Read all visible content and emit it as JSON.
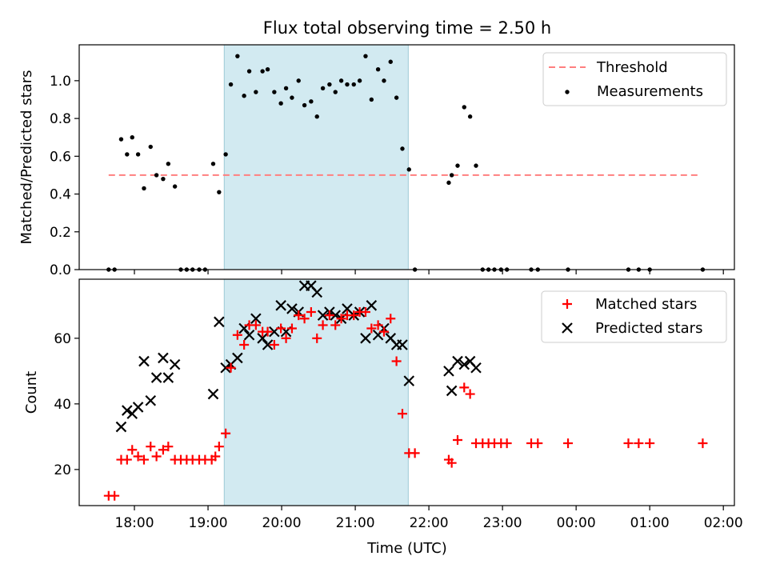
{
  "title": "Flux total observing time = 2.50 h",
  "colors": {
    "threshold": "#ff7f7f",
    "measurement": "#000000",
    "matched": "#ff0000",
    "predicted": "#000000",
    "shade": "#add8e6"
  },
  "chart_data": [
    {
      "type": "scatter",
      "title": "Flux total observing time = 2.50 h",
      "ylabel": "Matched/Predicted stars",
      "xlabel": "",
      "xlim": [
        17.25,
        26.15
      ],
      "ylim": [
        0,
        1.19
      ],
      "yticks": [
        0.0,
        0.2,
        0.4,
        0.6,
        0.8,
        1.0
      ],
      "ytick_labels": [
        "0.0",
        "0.2",
        "0.4",
        "0.6",
        "0.8",
        "1.0"
      ],
      "shaded_span": [
        19.22,
        21.72
      ],
      "legend": [
        "Threshold",
        "Measurements"
      ],
      "legend_position": "upper right",
      "threshold": {
        "name": "Threshold",
        "y": 0.5,
        "x_range": [
          17.65,
          25.7
        ],
        "style": "dashed"
      },
      "series": [
        {
          "name": "Measurements",
          "marker": "dot",
          "points": [
            [
              17.65,
              0.0
            ],
            [
              17.73,
              0.0
            ],
            [
              17.82,
              0.69
            ],
            [
              17.9,
              0.61
            ],
            [
              17.97,
              0.7
            ],
            [
              18.05,
              0.61
            ],
            [
              18.13,
              0.43
            ],
            [
              18.22,
              0.65
            ],
            [
              18.3,
              0.5
            ],
            [
              18.39,
              0.48
            ],
            [
              18.46,
              0.56
            ],
            [
              18.55,
              0.44
            ],
            [
              18.63,
              0.0
            ],
            [
              18.71,
              0.0
            ],
            [
              18.79,
              0.0
            ],
            [
              18.88,
              0.0
            ],
            [
              18.96,
              0.0
            ],
            [
              19.07,
              0.56
            ],
            [
              19.15,
              0.41
            ],
            [
              19.24,
              0.61
            ],
            [
              19.31,
              0.98
            ],
            [
              19.4,
              1.13
            ],
            [
              19.49,
              0.92
            ],
            [
              19.56,
              1.05
            ],
            [
              19.65,
              0.94
            ],
            [
              19.74,
              1.05
            ],
            [
              19.81,
              1.06
            ],
            [
              19.9,
              0.94
            ],
            [
              19.99,
              0.88
            ],
            [
              20.06,
              0.96
            ],
            [
              20.14,
              0.91
            ],
            [
              20.23,
              1.0
            ],
            [
              20.31,
              0.87
            ],
            [
              20.4,
              0.89
            ],
            [
              20.48,
              0.81
            ],
            [
              20.56,
              0.96
            ],
            [
              20.65,
              0.98
            ],
            [
              20.73,
              0.94
            ],
            [
              20.81,
              1.0
            ],
            [
              20.89,
              0.98
            ],
            [
              20.98,
              0.98
            ],
            [
              21.06,
              1.0
            ],
            [
              21.14,
              1.13
            ],
            [
              21.22,
              0.9
            ],
            [
              21.31,
              1.06
            ],
            [
              21.39,
              1.0
            ],
            [
              21.48,
              1.1
            ],
            [
              21.56,
              0.91
            ],
            [
              21.64,
              0.64
            ],
            [
              21.73,
              0.53
            ],
            [
              21.81,
              0.0
            ],
            [
              22.27,
              0.46
            ],
            [
              22.31,
              0.5
            ],
            [
              22.39,
              0.55
            ],
            [
              22.48,
              0.86
            ],
            [
              22.56,
              0.81
            ],
            [
              22.64,
              0.55
            ],
            [
              22.73,
              0.0
            ],
            [
              22.81,
              0.0
            ],
            [
              22.89,
              0.0
            ],
            [
              22.98,
              0.0
            ],
            [
              23.06,
              0.0
            ],
            [
              23.39,
              0.0
            ],
            [
              23.48,
              0.0
            ],
            [
              23.89,
              0.0
            ],
            [
              24.71,
              0.0
            ],
            [
              24.85,
              0.0
            ],
            [
              25.0,
              0.0
            ],
            [
              25.72,
              0.0
            ]
          ]
        }
      ]
    },
    {
      "type": "scatter",
      "title": "",
      "ylabel": "Count",
      "xlabel": "Time (UTC)",
      "xlim": [
        17.25,
        26.15
      ],
      "ylim": [
        9,
        78
      ],
      "yticks": [
        20,
        40,
        60
      ],
      "ytick_labels": [
        "20",
        "40",
        "60"
      ],
      "xticks": [
        18,
        19,
        20,
        21,
        22,
        23,
        24,
        25,
        26
      ],
      "xtick_labels": [
        "18:00",
        "19:00",
        "20:00",
        "21:00",
        "22:00",
        "23:00",
        "00:00",
        "01:00",
        "02:00"
      ],
      "shaded_span": [
        19.22,
        21.72
      ],
      "legend": [
        "Matched stars",
        "Predicted stars"
      ],
      "legend_position": "upper right",
      "series": [
        {
          "name": "Matched stars",
          "marker": "plus",
          "points": [
            [
              17.65,
              12
            ],
            [
              17.73,
              12
            ],
            [
              17.82,
              23
            ],
            [
              17.9,
              23
            ],
            [
              17.97,
              26
            ],
            [
              18.05,
              24
            ],
            [
              18.13,
              23
            ],
            [
              18.22,
              27
            ],
            [
              18.3,
              24
            ],
            [
              18.39,
              26
            ],
            [
              18.46,
              27
            ],
            [
              18.55,
              23
            ],
            [
              18.63,
              23
            ],
            [
              18.71,
              23
            ],
            [
              18.79,
              23
            ],
            [
              18.88,
              23
            ],
            [
              18.96,
              23
            ],
            [
              19.05,
              23
            ],
            [
              19.1,
              24
            ],
            [
              19.15,
              27
            ],
            [
              19.24,
              31
            ],
            [
              19.31,
              51
            ],
            [
              19.4,
              61
            ],
            [
              19.49,
              58
            ],
            [
              19.56,
              64
            ],
            [
              19.65,
              64
            ],
            [
              19.74,
              62
            ],
            [
              19.81,
              62
            ],
            [
              19.9,
              58
            ],
            [
              19.99,
              63
            ],
            [
              20.06,
              60
            ],
            [
              20.14,
              63
            ],
            [
              20.23,
              67
            ],
            [
              20.31,
              66
            ],
            [
              20.4,
              68
            ],
            [
              20.48,
              60
            ],
            [
              20.56,
              64
            ],
            [
              20.65,
              67
            ],
            [
              20.73,
              64
            ],
            [
              20.81,
              66
            ],
            [
              20.89,
              67
            ],
            [
              20.98,
              67
            ],
            [
              21.06,
              68
            ],
            [
              21.14,
              68
            ],
            [
              21.22,
              63
            ],
            [
              21.31,
              64
            ],
            [
              21.39,
              62
            ],
            [
              21.48,
              66
            ],
            [
              21.56,
              53
            ],
            [
              21.64,
              37
            ],
            [
              21.73,
              25
            ],
            [
              21.81,
              25
            ],
            [
              22.27,
              23
            ],
            [
              22.31,
              22
            ],
            [
              22.39,
              29
            ],
            [
              22.48,
              45
            ],
            [
              22.56,
              43
            ],
            [
              22.64,
              28
            ],
            [
              22.73,
              28
            ],
            [
              22.81,
              28
            ],
            [
              22.89,
              28
            ],
            [
              22.98,
              28
            ],
            [
              23.06,
              28
            ],
            [
              23.39,
              28
            ],
            [
              23.48,
              28
            ],
            [
              23.89,
              28
            ],
            [
              24.71,
              28
            ],
            [
              24.85,
              28
            ],
            [
              25.0,
              28
            ],
            [
              25.72,
              28
            ]
          ]
        },
        {
          "name": "Predicted stars",
          "marker": "x",
          "points": [
            [
              17.82,
              33
            ],
            [
              17.9,
              38
            ],
            [
              17.97,
              37
            ],
            [
              18.05,
              39
            ],
            [
              18.13,
              53
            ],
            [
              18.22,
              41
            ],
            [
              18.3,
              48
            ],
            [
              18.39,
              54
            ],
            [
              18.46,
              48
            ],
            [
              18.55,
              52
            ],
            [
              19.07,
              43
            ],
            [
              19.15,
              65
            ],
            [
              19.24,
              51
            ],
            [
              19.31,
              52
            ],
            [
              19.4,
              54
            ],
            [
              19.49,
              63
            ],
            [
              19.56,
              61
            ],
            [
              19.65,
              66
            ],
            [
              19.74,
              60
            ],
            [
              19.81,
              58
            ],
            [
              19.9,
              62
            ],
            [
              19.99,
              70
            ],
            [
              20.06,
              62
            ],
            [
              20.14,
              69
            ],
            [
              20.23,
              68
            ],
            [
              20.31,
              76
            ],
            [
              20.4,
              76
            ],
            [
              20.48,
              74
            ],
            [
              20.56,
              67
            ],
            [
              20.65,
              68
            ],
            [
              20.73,
              67
            ],
            [
              20.81,
              66
            ],
            [
              20.89,
              69
            ],
            [
              20.98,
              67
            ],
            [
              21.06,
              68
            ],
            [
              21.14,
              60
            ],
            [
              21.22,
              70
            ],
            [
              21.31,
              61
            ],
            [
              21.39,
              63
            ],
            [
              21.48,
              60
            ],
            [
              21.56,
              58
            ],
            [
              21.64,
              58
            ],
            [
              21.73,
              47
            ],
            [
              22.27,
              50
            ],
            [
              22.31,
              44
            ],
            [
              22.39,
              53
            ],
            [
              22.48,
              52
            ],
            [
              22.56,
              53
            ],
            [
              22.64,
              51
            ]
          ]
        }
      ]
    }
  ]
}
